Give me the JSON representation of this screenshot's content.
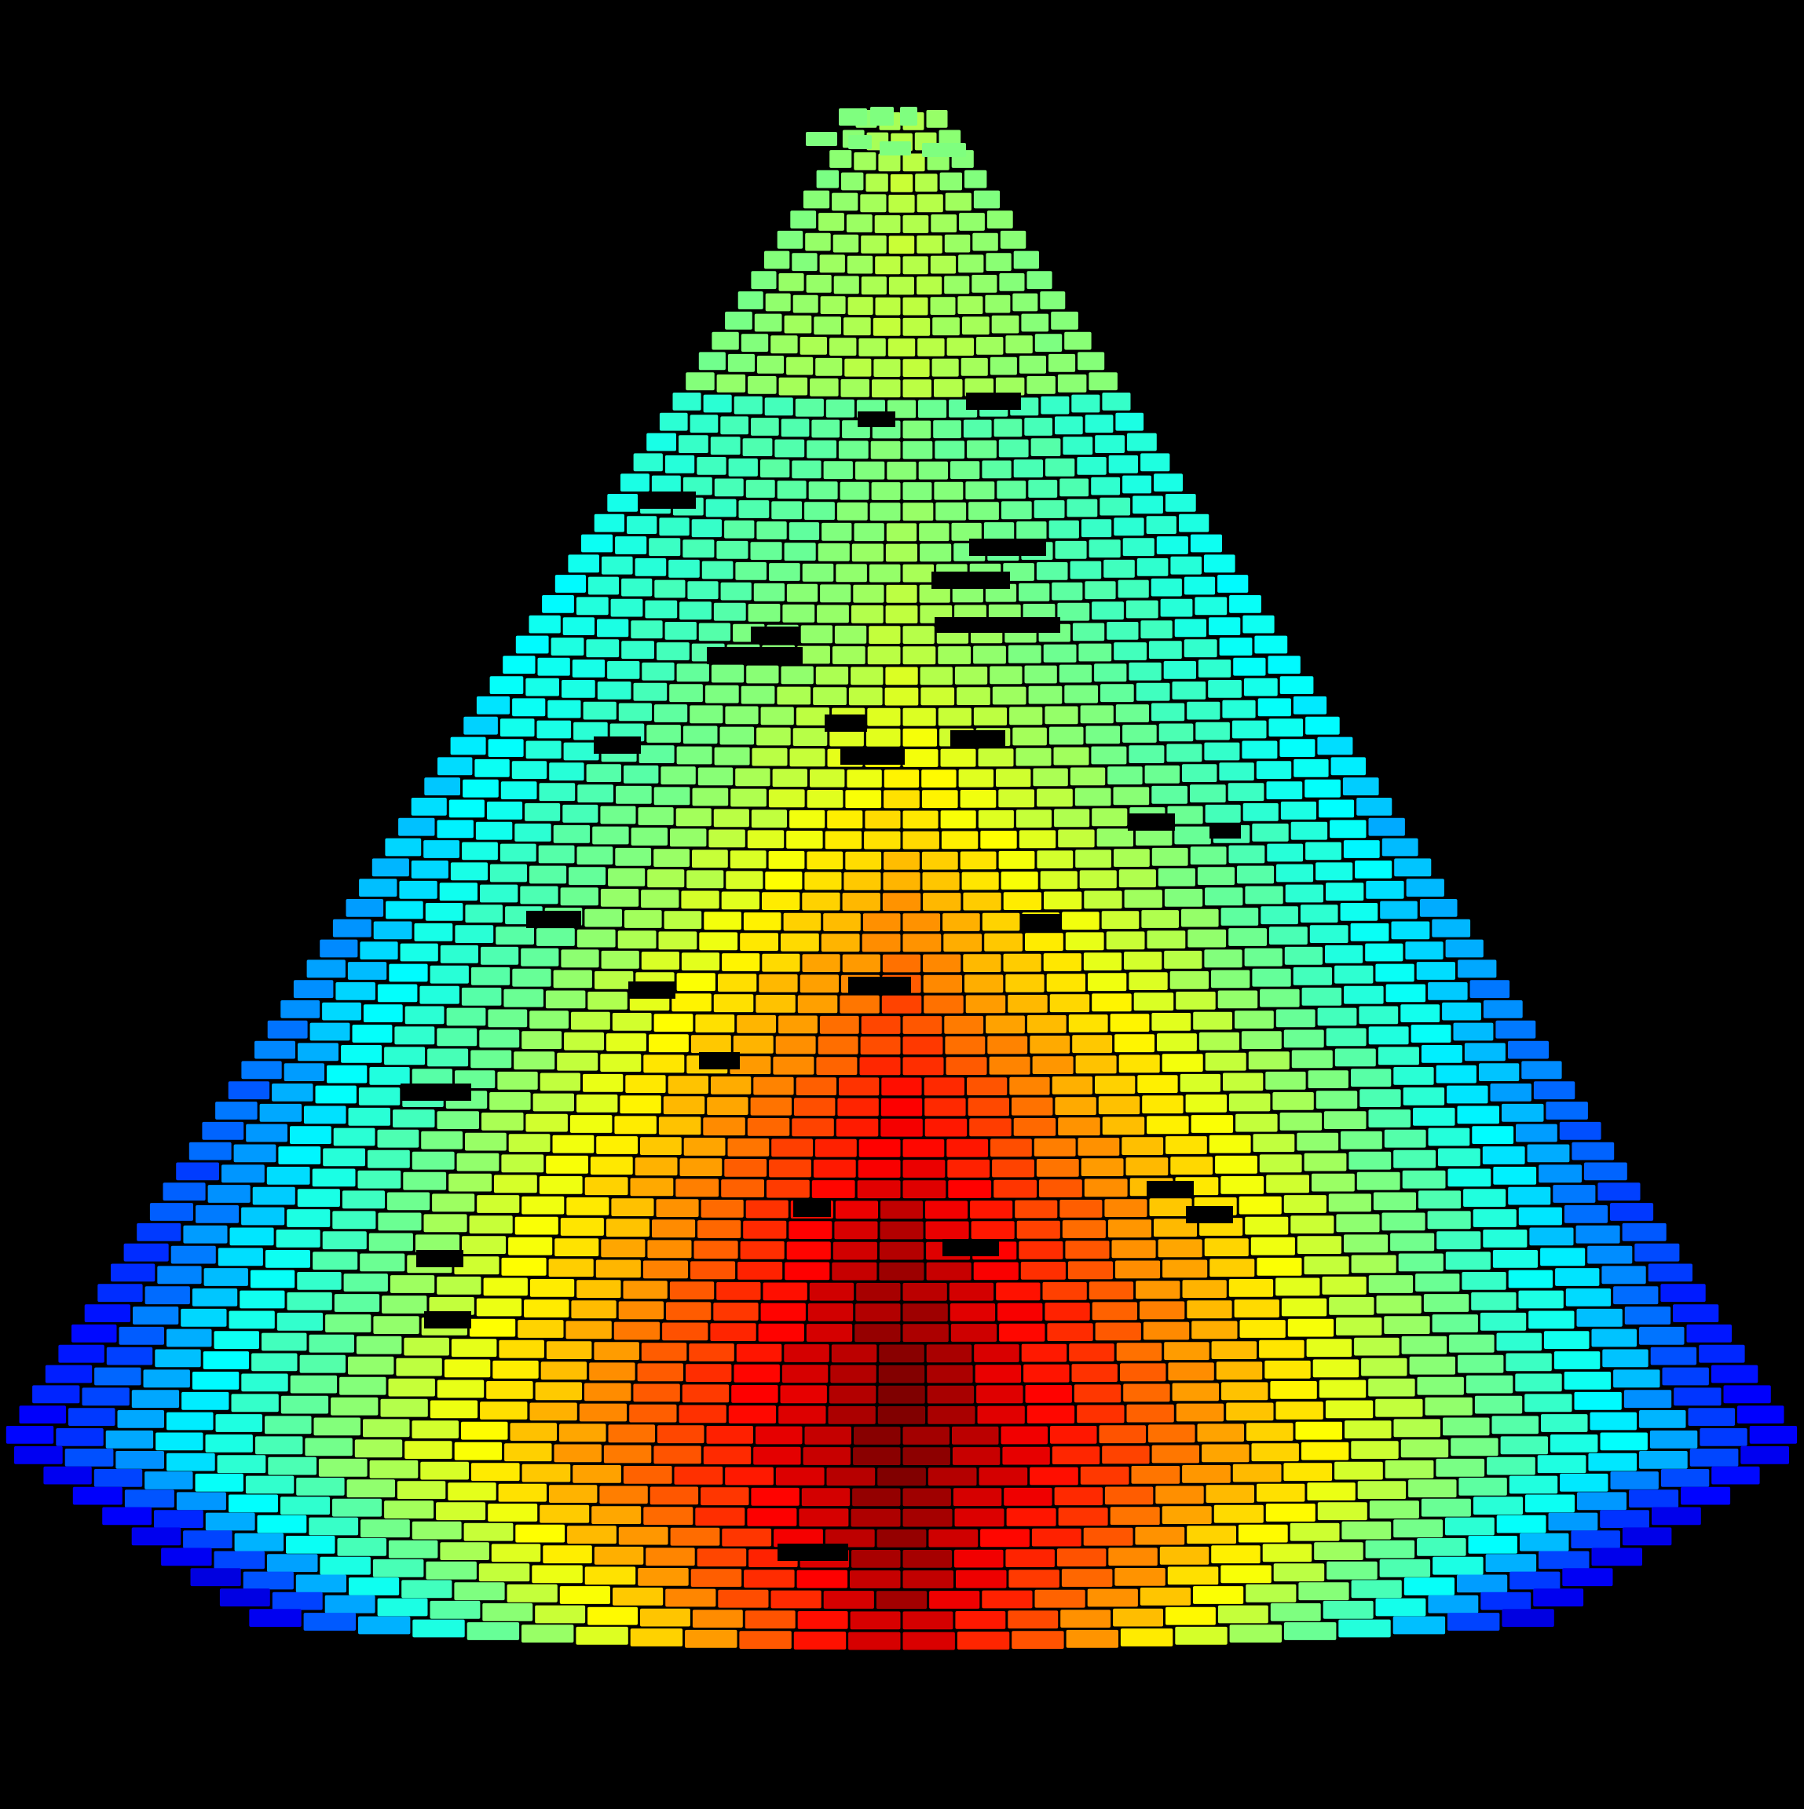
{
  "image": {
    "subject": "cone-shaped-brick-surface-heatmap",
    "background_color": "#000000",
    "colormap": "jet",
    "colormap_stops": [
      "#00008f",
      "#0000ff",
      "#00ffff",
      "#7fff7f",
      "#ffff00",
      "#ff7f00",
      "#ff0000",
      "#7f0000"
    ],
    "hot_center_color": "#8b0000",
    "cool_edge_color": "#0000ff",
    "top_color": "#7fff7f",
    "row_count": 75,
    "missing_tile_color": "#000000"
  }
}
